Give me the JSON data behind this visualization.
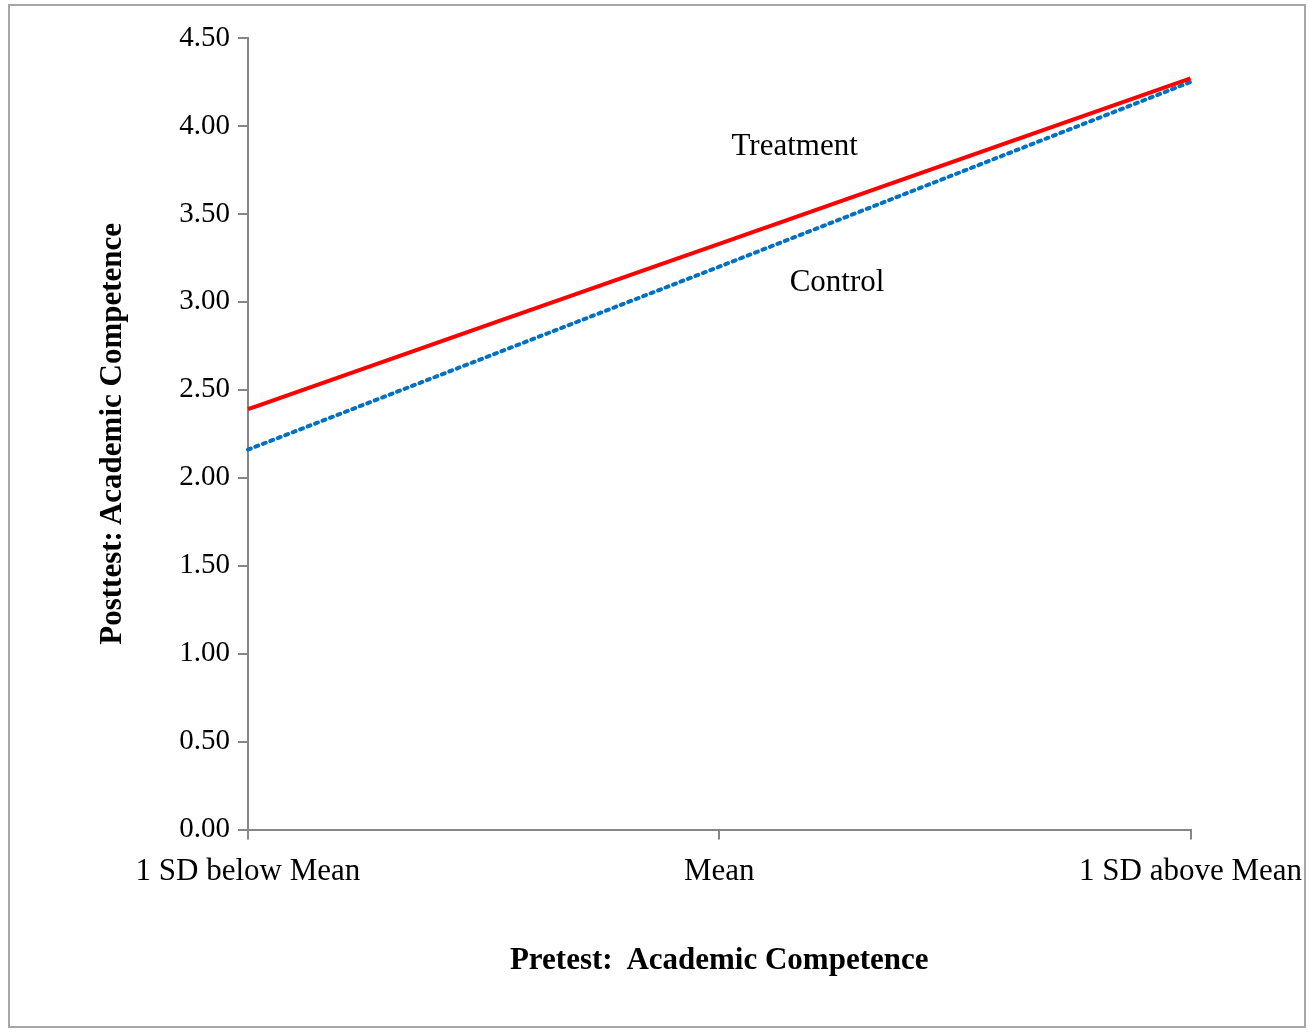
{
  "chart_data": {
    "type": "line",
    "xlabel": "Pretest:  Academic Competence",
    "ylabel": "Posttest: Academic Competence",
    "categories": [
      "1 SD below Mean",
      "Mean",
      "1 SD above Mean"
    ],
    "series": [
      {
        "name": "Treatment",
        "color": "#ff0000",
        "values": [
          2.39,
          3.33,
          4.27
        ],
        "line_style": "solid"
      },
      {
        "name": "Control",
        "color": "#0070c0",
        "values": [
          2.16,
          3.2,
          4.25
        ],
        "line_style": "dotted"
      }
    ],
    "ylim": [
      0,
      4.5
    ],
    "yticks": [
      {
        "value": 0,
        "label": "0.00"
      },
      {
        "value": 0.5,
        "label": "0.50"
      },
      {
        "value": 1,
        "label": "1.00"
      },
      {
        "value": 1.5,
        "label": "1.50"
      },
      {
        "value": 2,
        "label": "2.00"
      },
      {
        "value": 2.5,
        "label": "2.50"
      },
      {
        "value": 3,
        "label": "3.00"
      },
      {
        "value": 3.5,
        "label": "3.50"
      },
      {
        "value": 4,
        "label": "4.00"
      },
      {
        "value": 4.5,
        "label": "4.50"
      }
    ],
    "grid": false,
    "legend": false,
    "marker": "none"
  }
}
